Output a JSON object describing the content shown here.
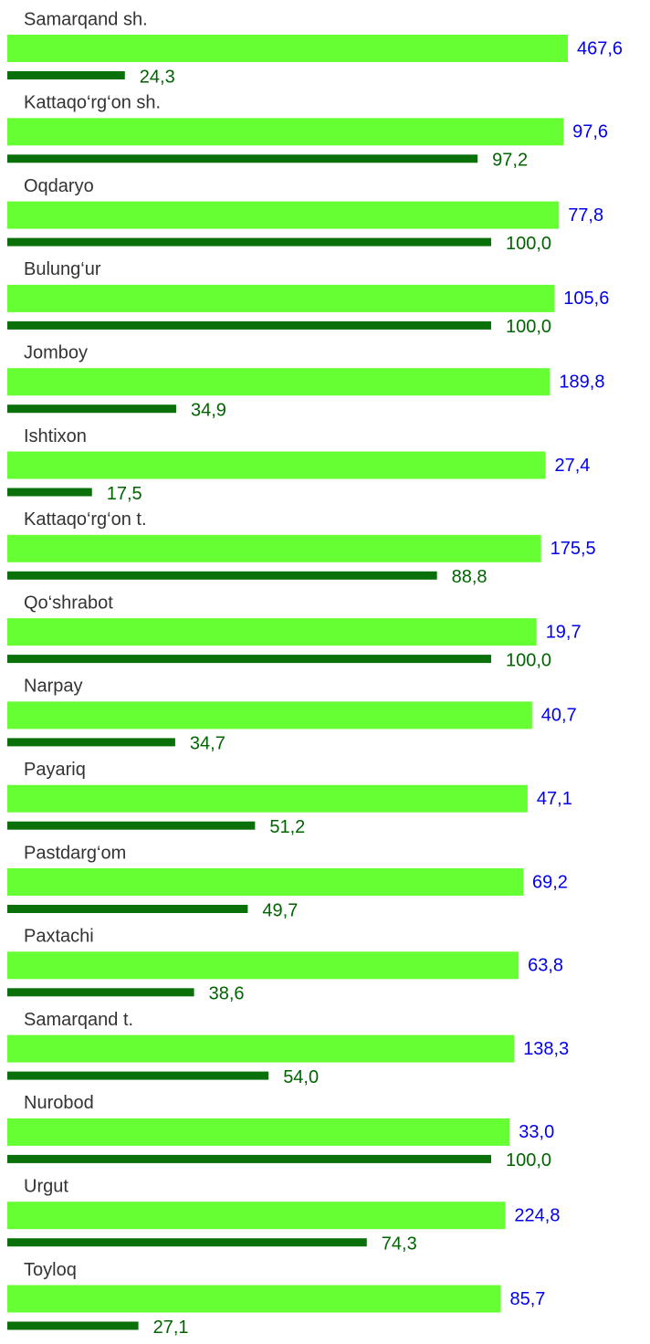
{
  "chart_data": {
    "type": "bar",
    "categories": [
      "Samarqand sh.",
      "Kattaqo‘rg‘on sh.",
      "Oqdaryo",
      "Bulung‘ur",
      "Jomboy",
      "Ishtixon",
      "Kattaqo‘rg‘on t.",
      "Qo‘shrabot",
      "Narpay",
      "Payariq",
      "Pastdarg‘om",
      "Paxtachi",
      "Samarqand t.",
      "Nurobod",
      "Urgut",
      "Toyloq"
    ],
    "series": [
      {
        "color": "#66ff33",
        "label_color": "#0000ee",
        "values": [
          467.6,
          97.6,
          77.8,
          105.6,
          189.8,
          27.4,
          175.5,
          19.7,
          40.7,
          47.1,
          69.2,
          63.8,
          138.3,
          33.0,
          224.8,
          85.7
        ],
        "value_labels": [
          "467,6",
          "97,6",
          "77,8",
          "105,6",
          "189,8",
          "27,4",
          "175,5",
          "19,7",
          "40,7",
          "47,1",
          "69,2",
          "63,8",
          "138,3",
          "33,0",
          "224,8",
          "85,7"
        ]
      },
      {
        "color": "#0a710a",
        "label_color": "#006400",
        "values": [
          24.3,
          97.2,
          100.0,
          100.0,
          34.9,
          17.5,
          88.8,
          100.0,
          34.7,
          51.2,
          49.7,
          38.6,
          54.0,
          100.0,
          74.3,
          27.1
        ],
        "value_labels": [
          "24,3",
          "97,2",
          "100,0",
          "100,0",
          "34,9",
          "17,5",
          "88,8",
          "100,0",
          "34,7",
          "51,2",
          "49,7",
          "38,6",
          "54,0",
          "100,0",
          "74,3",
          "27,1"
        ]
      }
    ],
    "xlim": [
      0,
      100
    ]
  }
}
